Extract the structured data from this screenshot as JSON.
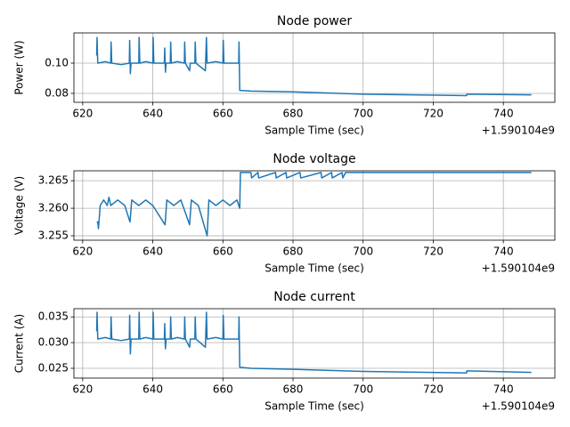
{
  "chart_data": [
    {
      "type": "line",
      "title": "Node power",
      "xlabel": "Sample Time (sec)",
      "ylabel": "Power (W)",
      "x_offset_label": "+1.590104e9",
      "color": "#1f77b4",
      "grid": true,
      "x": [
        624,
        624.1,
        624.3,
        626.5,
        628,
        628.1,
        628.3,
        631,
        633.3,
        633.4,
        633.6,
        633.8,
        636,
        636.1,
        636.3,
        638,
        640,
        640.1,
        640.3,
        643.3,
        643.4,
        643.6,
        643.8,
        645,
        645.1,
        645.3,
        647,
        649,
        649.1,
        649.3,
        650.5,
        650.7,
        652,
        652.1,
        652.3,
        655,
        655.3,
        655.5,
        658,
        660,
        660.1,
        660.3,
        664.5,
        664.6,
        664.8,
        668,
        680,
        700,
        729.5,
        729.6,
        748
      ],
      "values": [
        0.105,
        0.117,
        0.1,
        0.101,
        0.1,
        0.114,
        0.1,
        0.099,
        0.1,
        0.115,
        0.093,
        0.1,
        0.1,
        0.117,
        0.1,
        0.101,
        0.1,
        0.117,
        0.1,
        0.1,
        0.11,
        0.094,
        0.1,
        0.1,
        0.114,
        0.1,
        0.101,
        0.1,
        0.114,
        0.1,
        0.095,
        0.1,
        0.1,
        0.114,
        0.1,
        0.095,
        0.117,
        0.1,
        0.101,
        0.1,
        0.115,
        0.1,
        0.1,
        0.114,
        0.082,
        0.0815,
        0.081,
        0.0795,
        0.0785,
        0.0795,
        0.079
      ],
      "xlim": [
        617.5,
        754.7
      ],
      "xticks": [
        620,
        640,
        660,
        680,
        700,
        720,
        740
      ],
      "ylim": [
        0.0741,
        0.12
      ],
      "yticks": [
        0.08,
        {
          "value": 0.1,
          "label": "0.10"
        }
      ]
    },
    {
      "type": "line",
      "title": "Node voltage",
      "xlabel": "Sample Time (sec)",
      "ylabel": "Voltage (V)",
      "x_offset_label": "+1.590104e9",
      "color": "#1f77b4",
      "grid": true,
      "x": [
        624,
        624.3,
        624.5,
        625,
        626,
        627,
        627.5,
        628,
        630,
        632,
        633.5,
        634,
        636,
        638,
        640,
        643.5,
        644,
        646,
        648,
        650.5,
        651,
        653,
        655.5,
        656,
        658,
        660,
        662,
        664,
        664.8,
        665,
        668,
        668.2,
        670,
        670.2,
        675,
        675.2,
        678,
        678.2,
        682,
        682.2,
        688,
        688.2,
        691,
        691.2,
        694,
        694.2,
        695,
        748
      ],
      "values": [
        3.2575,
        3.2575,
        3.2563,
        3.2605,
        3.2615,
        3.2605,
        3.262,
        3.2605,
        3.2615,
        3.2605,
        3.2575,
        3.2615,
        3.2605,
        3.2615,
        3.2605,
        3.257,
        3.2615,
        3.2605,
        3.2615,
        3.257,
        3.2615,
        3.2605,
        3.255,
        3.2615,
        3.2605,
        3.2615,
        3.2605,
        3.2615,
        3.26,
        3.2665,
        3.2665,
        3.2655,
        3.2665,
        3.2655,
        3.2665,
        3.2655,
        3.2665,
        3.2655,
        3.2665,
        3.2655,
        3.2665,
        3.2655,
        3.2665,
        3.2655,
        3.2665,
        3.2655,
        3.2665,
        3.2665
      ],
      "xlim": [
        617.5,
        754.7
      ],
      "xticks": [
        620,
        640,
        660,
        680,
        700,
        720,
        740
      ],
      "ylim": [
        3.2542,
        3.2668
      ],
      "yticks": [
        3.255,
        {
          "value": 3.26,
          "label": "3.260"
        },
        3.265
      ]
    },
    {
      "type": "line",
      "title": "Node current",
      "xlabel": "Sample Time (sec)",
      "ylabel": "Current (A)",
      "x_offset_label": "+1.590104e9",
      "color": "#1f77b4",
      "grid": true,
      "x": [
        624,
        624.1,
        624.3,
        626.5,
        628,
        628.1,
        628.3,
        631,
        633.3,
        633.4,
        633.6,
        633.8,
        636,
        636.1,
        636.3,
        638,
        640,
        640.1,
        640.3,
        643.3,
        643.4,
        643.6,
        643.8,
        645,
        645.1,
        645.3,
        647,
        649,
        649.1,
        649.3,
        650.5,
        650.7,
        652,
        652.1,
        652.3,
        655,
        655.3,
        655.5,
        658,
        660,
        660.1,
        660.3,
        664.5,
        664.6,
        664.8,
        668,
        680,
        700,
        729.5,
        729.6,
        748
      ],
      "values": [
        0.0322,
        0.0359,
        0.0307,
        0.031,
        0.0307,
        0.035,
        0.0307,
        0.0304,
        0.0307,
        0.0353,
        0.0278,
        0.0307,
        0.0307,
        0.0359,
        0.0307,
        0.031,
        0.0307,
        0.0359,
        0.0307,
        0.0307,
        0.0337,
        0.0288,
        0.0307,
        0.0307,
        0.035,
        0.0307,
        0.031,
        0.0307,
        0.035,
        0.0307,
        0.0291,
        0.0307,
        0.0307,
        0.035,
        0.0307,
        0.0291,
        0.0359,
        0.0307,
        0.031,
        0.0307,
        0.0353,
        0.0307,
        0.0307,
        0.035,
        0.0252,
        0.025,
        0.0248,
        0.0244,
        0.0241,
        0.0245,
        0.0242
      ],
      "xlim": [
        617.5,
        754.7
      ],
      "xticks": [
        620,
        640,
        660,
        680,
        700,
        720,
        740
      ],
      "ylim": [
        0.0231,
        0.0366
      ],
      "yticks": [
        0.025,
        {
          "value": 0.03,
          "label": "0.030"
        },
        0.035
      ]
    }
  ]
}
